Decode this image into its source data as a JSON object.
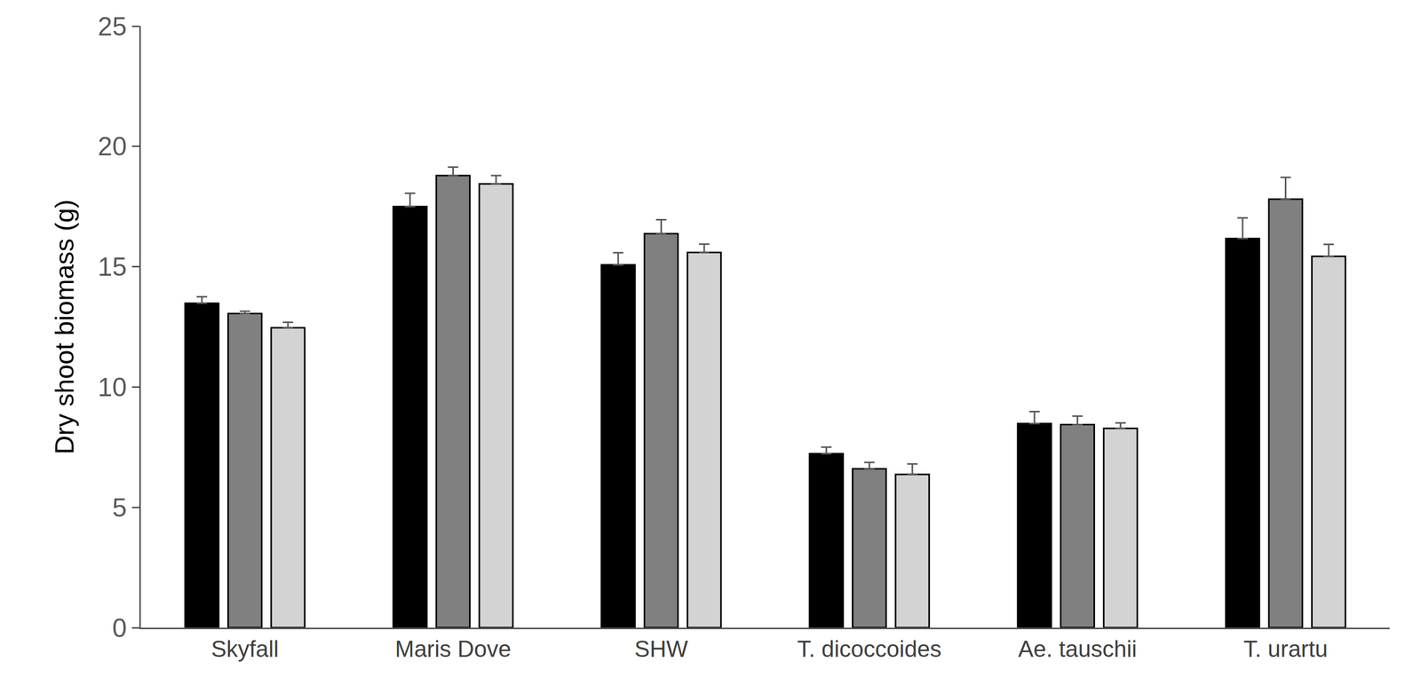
{
  "chart_data": {
    "type": "bar",
    "y_label": "Dry shoot biomass (g)",
    "categories": [
      "Skyfall",
      "Maris Dove",
      "SHW",
      "T. dicoccoides",
      "Ae. tauschii",
      "T. urartu"
    ],
    "series": [
      {
        "color": "#000000",
        "values": [
          13.48,
          17.5,
          15.08,
          7.23,
          8.48,
          16.17
        ],
        "errors": [
          0.27,
          0.55,
          0.5,
          0.27,
          0.5,
          0.86
        ]
      },
      {
        "color": "#808080",
        "values": [
          13.05,
          18.79,
          16.37,
          6.6,
          8.44,
          17.81
        ],
        "errors": [
          0.1,
          0.35,
          0.58,
          0.27,
          0.35,
          0.9
        ]
      },
      {
        "color": "#d3d3d3",
        "values": [
          12.46,
          18.44,
          15.59,
          6.37,
          8.28,
          15.43
        ],
        "errors": [
          0.23,
          0.35,
          0.35,
          0.43,
          0.23,
          0.5
        ]
      }
    ],
    "ylim": [
      0,
      25
    ],
    "yticks": [
      0,
      5,
      10,
      15,
      20,
      25
    ],
    "grid": false
  }
}
